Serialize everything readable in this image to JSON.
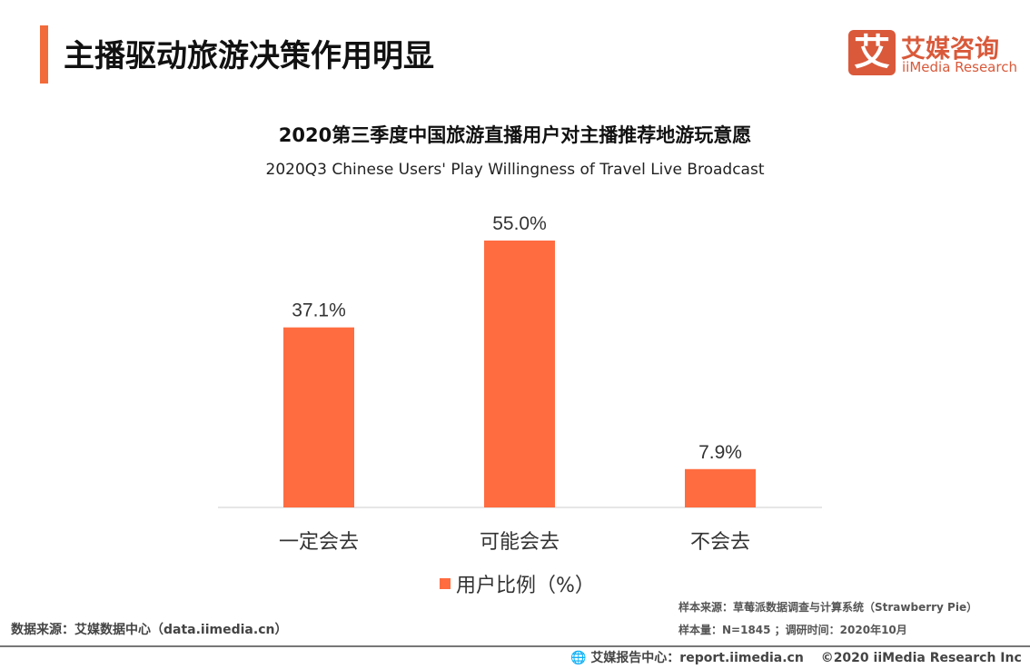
{
  "header": {
    "title": "主播驱动旅游决策作用明显"
  },
  "logo": {
    "mark": "艾",
    "cn": "艾媒咨询",
    "en": "iiMedia Research"
  },
  "chart_data": {
    "type": "bar",
    "title": "2020第三季度中国旅游直播用户对主播推荐地游玩意愿",
    "subtitle": "2020Q3 Chinese Users' Play Willingness of Travel Live Broadcast",
    "categories": [
      "一定会去",
      "可能会去",
      "不会去"
    ],
    "series": [
      {
        "name": "用户比例（%）",
        "values": [
          37.1,
          55.0,
          7.9
        ],
        "labels": [
          "37.1%",
          "55.0%",
          "7.9%"
        ]
      }
    ],
    "color": "#ff6c40",
    "ylim": [
      0,
      55
    ],
    "grid": false,
    "legend": "bottom"
  },
  "notes": {
    "sample_source": "样本来源：草莓派数据调查与计算系统（Strawberry Pie）",
    "sample_size": "样本量：N=1845 ；调研时间：2020年10月"
  },
  "footer": {
    "source": "数据来源：艾媒数据中心（data.iimedia.cn）",
    "report": "艾媒报告中心：report.iimedia.cn",
    "copyright": "©2020  iiMedia Research  Inc"
  }
}
